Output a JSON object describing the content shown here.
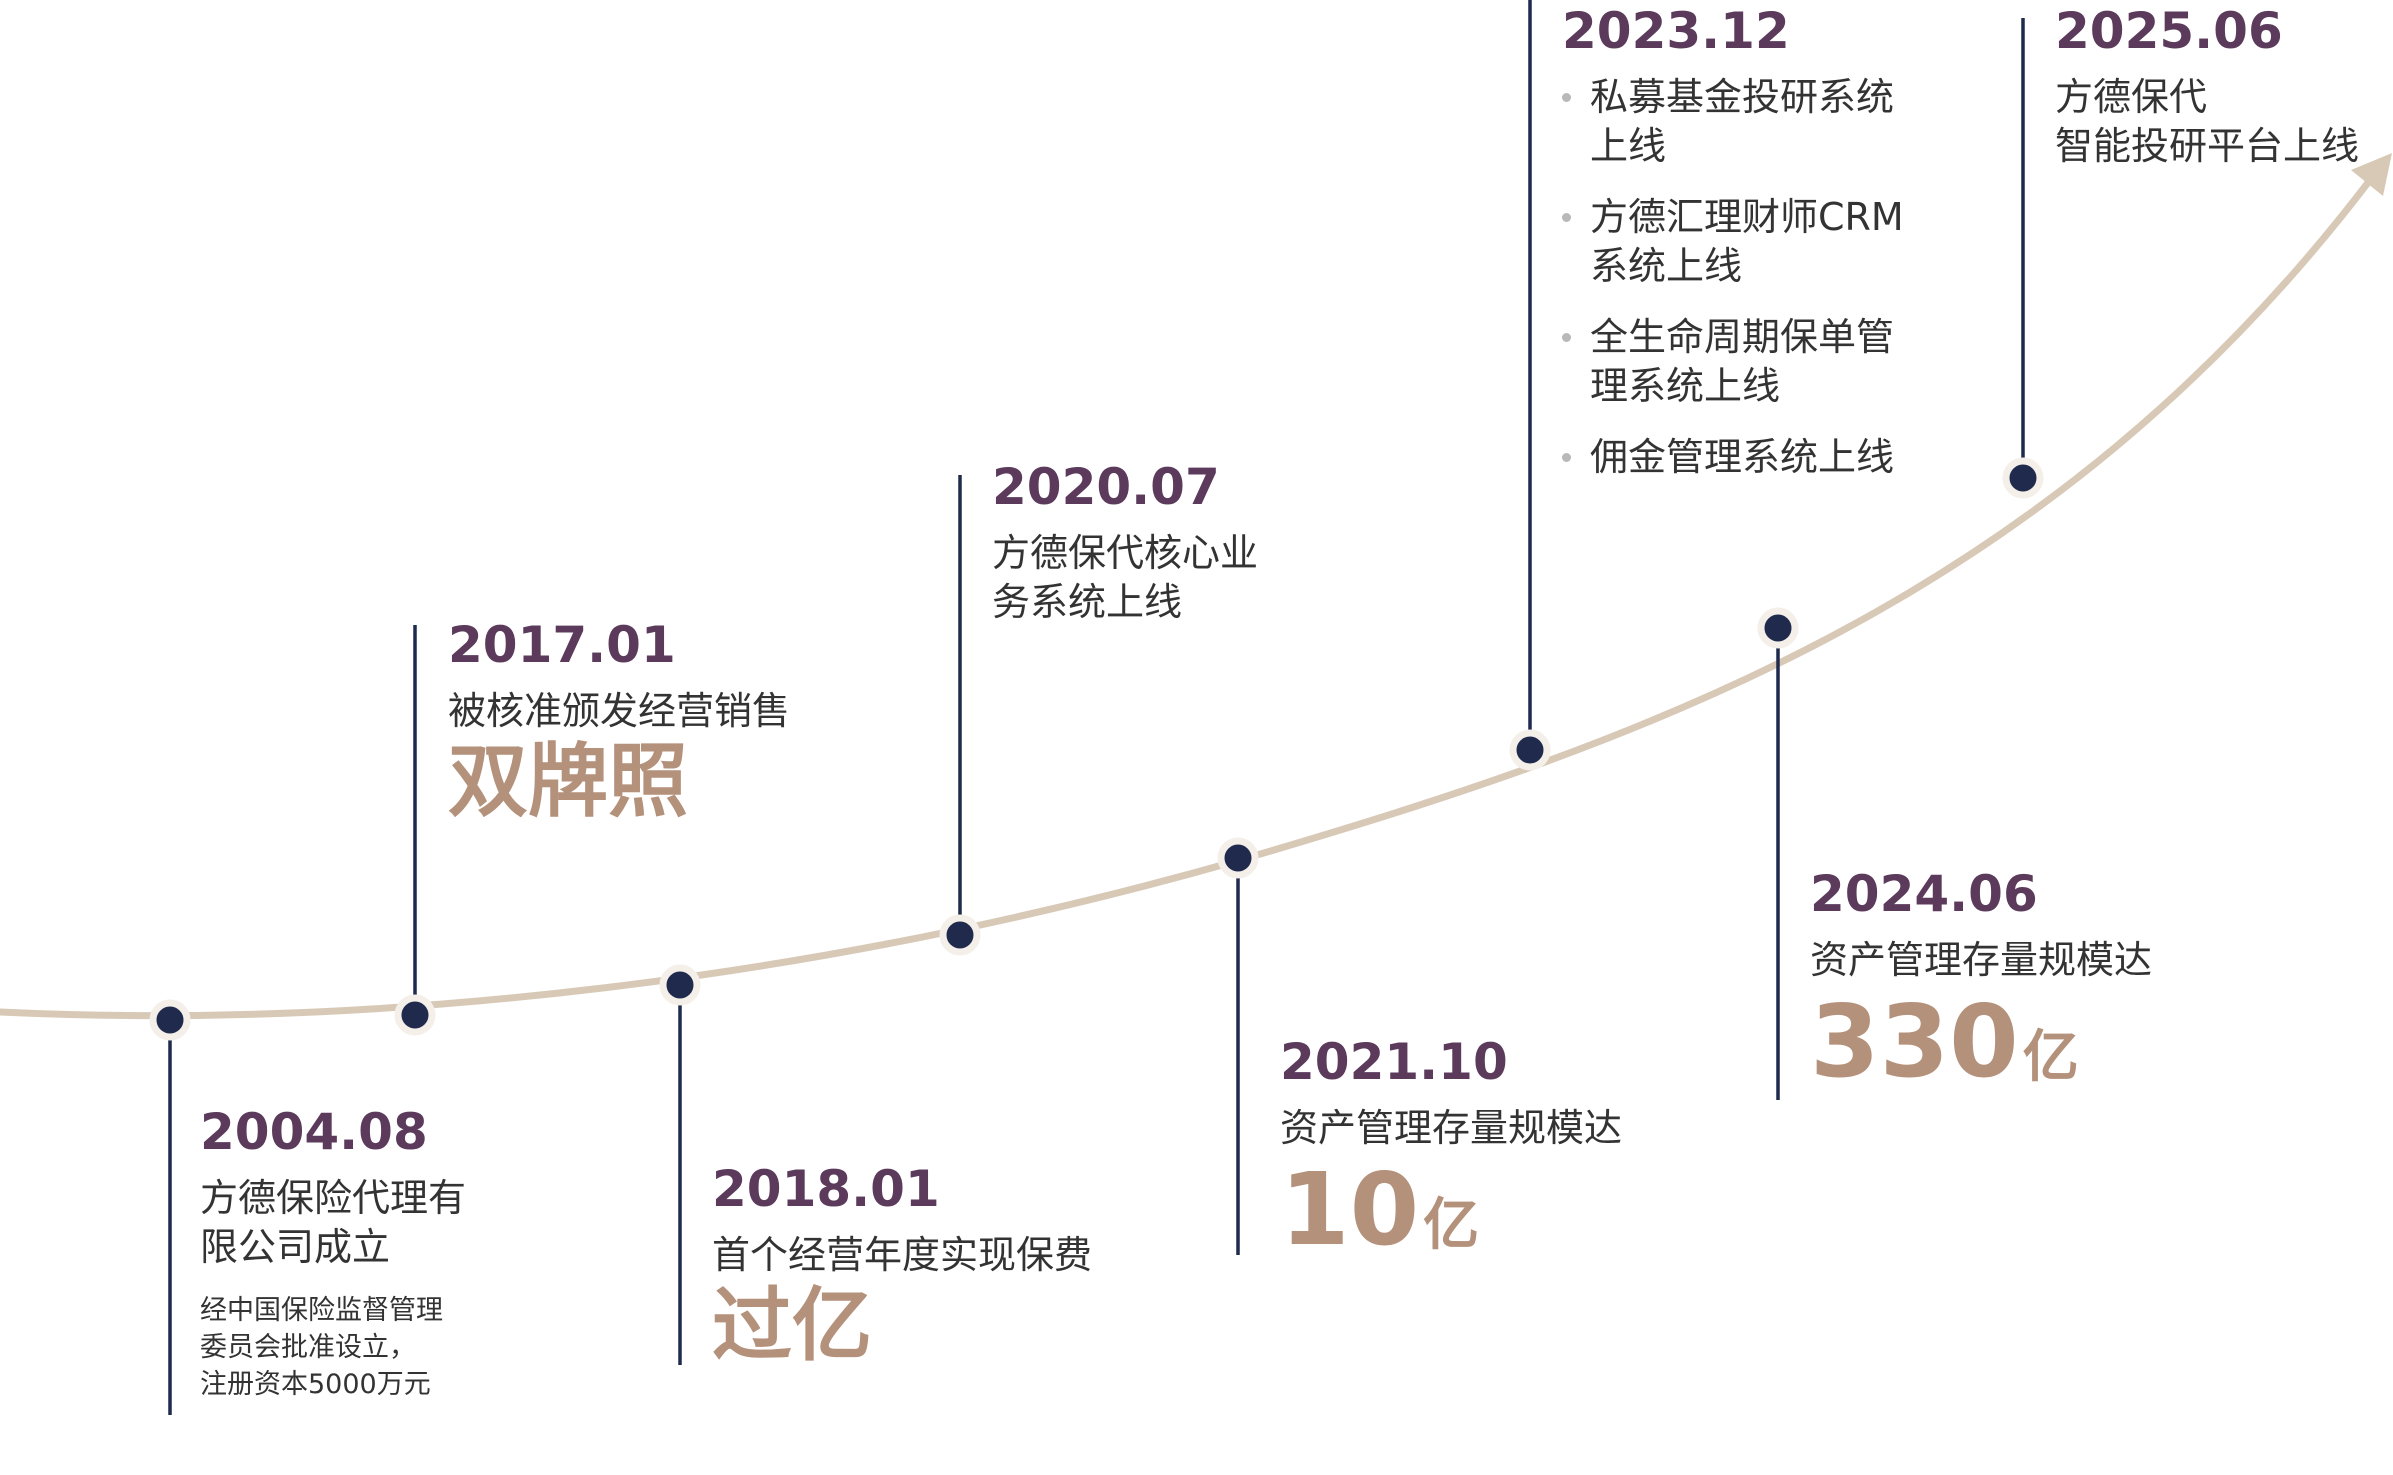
{
  "colors": {
    "curve": "#d8c9b7",
    "stem": "#1f2a4d",
    "dot": "#1f2a4d",
    "date": "#5b3a5b",
    "highlight": "#b4917a",
    "text": "#333333"
  },
  "events": [
    {
      "id": "2004-08",
      "date": "2004.08",
      "lines": [
        "方德保险代理有",
        "限公司成立"
      ],
      "note": [
        "经中国保险监督管理",
        "委员会批准设立，",
        "注册资本5000万元"
      ]
    },
    {
      "id": "2017-01",
      "date": "2017.01",
      "lines": [
        "被核准颁发经营销售"
      ],
      "highlight": "双牌照"
    },
    {
      "id": "2018-01",
      "date": "2018.01",
      "lines": [
        "首个经营年度实现保费"
      ],
      "highlight": "过亿"
    },
    {
      "id": "2020-07",
      "date": "2020.07",
      "lines": [
        "方德保代核心业",
        "务系统上线"
      ]
    },
    {
      "id": "2021-10",
      "date": "2021.10",
      "lines": [
        "资产管理存量规模达"
      ],
      "highlight_number": "10",
      "highlight_unit": "亿"
    },
    {
      "id": "2023-12",
      "date": "2023.12",
      "bullets": [
        [
          "私募基金投研系统",
          "上线"
        ],
        [
          "方德汇理财师CRM",
          "系统上线"
        ],
        [
          "全生命周期保单管",
          "理系统上线"
        ],
        [
          "佣金管理系统上线"
        ]
      ]
    },
    {
      "id": "2024-06",
      "date": "2024.06",
      "lines": [
        "资产管理存量规模达"
      ],
      "highlight_number": "330",
      "highlight_unit": "亿"
    },
    {
      "id": "2025-06",
      "date": "2025.06",
      "lines": [
        "方德保代",
        "智能投研平台上线"
      ]
    }
  ]
}
